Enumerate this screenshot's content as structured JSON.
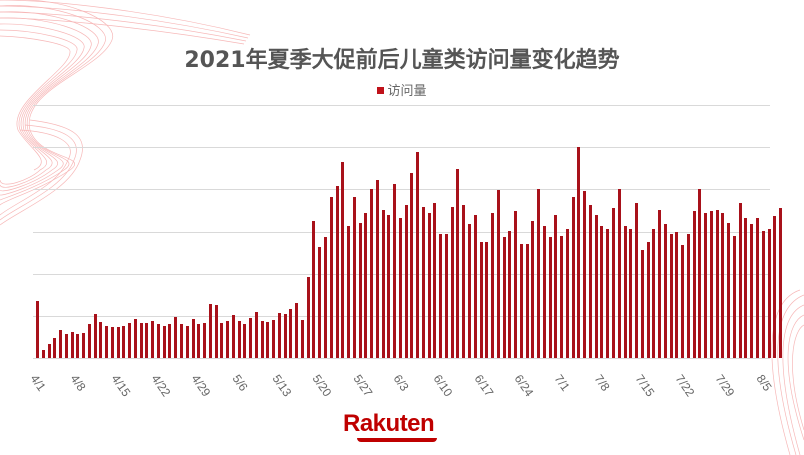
{
  "header": {
    "title": "2021年夏季大促前后儿童类访问量变化趋势",
    "legend_label": "访问量"
  },
  "brand": {
    "logo_text": "Rakuten",
    "color": "#bf0000"
  },
  "colors": {
    "bar": "#a8111a",
    "grid": "#d9d9d9",
    "title": "#555555"
  },
  "chart_data": {
    "type": "bar",
    "title": "2021年夏季大促前后儿童类访问量变化趋势",
    "xlabel": "",
    "ylabel": "",
    "legend": [
      "访问量"
    ],
    "legend_position": "top",
    "grid": true,
    "y_axis_labels_shown": false,
    "ylim": [
      0,
      6
    ],
    "y_unit_note": "values in gridline units (no y tick labels shown)",
    "x_tick_labels": [
      "4/1",
      "4/8",
      "4/15",
      "4/22",
      "4/29",
      "5/6",
      "5/13",
      "5/20",
      "5/27",
      "6/3",
      "6/10",
      "6/17",
      "6/24",
      "7/1",
      "7/8",
      "7/15",
      "7/22",
      "7/29",
      "8/5"
    ],
    "x_start": "4/1",
    "x_end": "8/5",
    "series": [
      {
        "name": "访问量",
        "values": [
          1.36,
          0.19,
          0.33,
          0.48,
          0.67,
          0.57,
          0.62,
          0.57,
          0.6,
          0.81,
          1.05,
          0.86,
          0.76,
          0.74,
          0.74,
          0.76,
          0.83,
          0.93,
          0.83,
          0.83,
          0.88,
          0.81,
          0.76,
          0.81,
          0.98,
          0.81,
          0.76,
          0.93,
          0.81,
          0.83,
          1.29,
          1.26,
          0.83,
          0.88,
          1.02,
          0.88,
          0.81,
          0.95,
          1.1,
          0.88,
          0.86,
          0.9,
          1.07,
          1.05,
          1.17,
          1.31,
          0.9,
          1.93,
          3.26,
          2.64,
          2.86,
          3.81,
          4.07,
          4.64,
          3.14,
          3.81,
          3.21,
          3.43,
          4.02,
          4.21,
          3.52,
          3.38,
          4.12,
          3.31,
          3.64,
          4.38,
          4.88,
          3.57,
          3.45,
          3.67,
          2.95,
          2.95,
          3.57,
          4.48,
          3.62,
          3.17,
          3.38,
          2.74,
          2.76,
          3.43,
          3.98,
          2.86,
          3.02,
          3.48,
          2.71,
          2.71,
          3.24,
          4.02,
          3.12,
          2.86,
          3.38,
          2.9,
          3.05,
          3.83,
          5.0,
          3.95,
          3.62,
          3.4,
          3.14,
          3.07,
          3.55,
          4.0,
          3.14,
          3.05,
          3.67,
          2.55,
          2.76,
          3.07,
          3.5,
          3.17,
          2.93,
          3.0,
          2.69,
          2.95,
          3.48,
          4.0,
          3.45,
          3.48,
          3.5,
          3.43,
          3.21,
          2.9,
          3.67,
          3.31,
          3.19,
          3.31,
          3.02,
          3.07,
          3.36,
          3.55
        ]
      }
    ]
  }
}
